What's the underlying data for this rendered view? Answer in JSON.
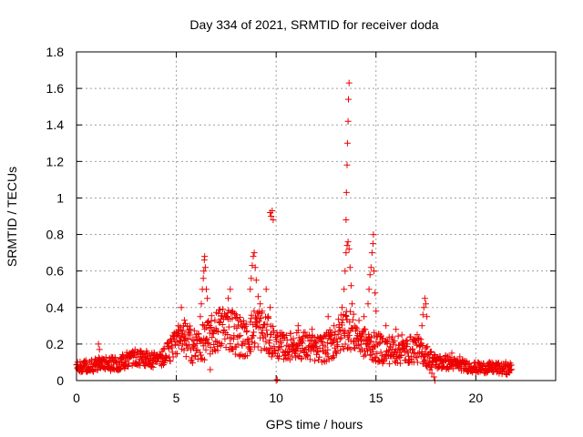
{
  "chart_data": {
    "type": "scatter",
    "title": "Day 334 of 2021, SRMTID for receiver doda",
    "xlabel": "GPS time / hours",
    "ylabel": "SRMTID / TECUs",
    "xlim": [
      0,
      24
    ],
    "ylim": [
      0,
      1.8
    ],
    "xticks": [
      0,
      5,
      10,
      15,
      20
    ],
    "xtick_labels": [
      "0",
      "5",
      "10",
      "15",
      "20"
    ],
    "yticks": [
      0,
      0.2,
      0.4,
      0.6,
      0.8,
      1,
      1.2,
      1.4,
      1.6,
      1.8
    ],
    "ytick_labels": [
      "0",
      "0.2",
      "0.4",
      "0.6",
      "0.8",
      "1",
      "1.2",
      "1.4",
      "1.6",
      "1.8"
    ],
    "grid": true,
    "marker": "plus",
    "marker_color": "#ee0000",
    "series": [
      {
        "name": "SRMTID",
        "envelope": {
          "description": "baseline of the dense point cloud, hours -> TECUs",
          "x": [
            0,
            1,
            2,
            3,
            4,
            4.5,
            5,
            5.5,
            6,
            6.5,
            7,
            7.5,
            8,
            8.5,
            9,
            9.5,
            10,
            10.5,
            11,
            11.5,
            12,
            12.5,
            13,
            13.5,
            14,
            14.5,
            15,
            15.5,
            16,
            16.5,
            17,
            17.5,
            18,
            18.5,
            19,
            19.5,
            20,
            20.5,
            21,
            21.5,
            21.8
          ],
          "y": [
            0.07,
            0.09,
            0.09,
            0.13,
            0.11,
            0.15,
            0.2,
            0.22,
            0.18,
            0.22,
            0.27,
            0.3,
            0.26,
            0.22,
            0.3,
            0.25,
            0.2,
            0.18,
            0.2,
            0.19,
            0.17,
            0.18,
            0.22,
            0.3,
            0.25,
            0.2,
            0.18,
            0.17,
            0.17,
            0.16,
            0.18,
            0.14,
            0.1,
            0.1,
            0.09,
            0.08,
            0.07,
            0.07,
            0.07,
            0.06,
            0.07
          ],
          "spread": [
            0.03,
            0.04,
            0.04,
            0.05,
            0.04,
            0.06,
            0.08,
            0.1,
            0.1,
            0.1,
            0.12,
            0.13,
            0.12,
            0.1,
            0.12,
            0.11,
            0.08,
            0.07,
            0.08,
            0.08,
            0.07,
            0.08,
            0.1,
            0.12,
            0.1,
            0.08,
            0.08,
            0.08,
            0.08,
            0.07,
            0.08,
            0.06,
            0.04,
            0.04,
            0.03,
            0.03,
            0.03,
            0.03,
            0.03,
            0.03,
            0.03
          ]
        },
        "points": [
          [
            1.1,
            0.2
          ],
          [
            1.15,
            0.17
          ],
          [
            5.1,
            0.3
          ],
          [
            5.25,
            0.4
          ],
          [
            5.4,
            0.33
          ],
          [
            6.2,
            0.35
          ],
          [
            6.25,
            0.42
          ],
          [
            6.3,
            0.5
          ],
          [
            6.35,
            0.56
          ],
          [
            6.38,
            0.6
          ],
          [
            6.4,
            0.66
          ],
          [
            6.42,
            0.68
          ],
          [
            6.45,
            0.62
          ],
          [
            6.5,
            0.5
          ],
          [
            6.55,
            0.45
          ],
          [
            6.7,
            0.06
          ],
          [
            7.6,
            0.45
          ],
          [
            7.7,
            0.5
          ],
          [
            7.8,
            0.38
          ],
          [
            8.7,
            0.5
          ],
          [
            8.75,
            0.56
          ],
          [
            8.8,
            0.63
          ],
          [
            8.85,
            0.68
          ],
          [
            8.9,
            0.7
          ],
          [
            8.95,
            0.62
          ],
          [
            9.0,
            0.55
          ],
          [
            9.1,
            0.46
          ],
          [
            9.2,
            0.42
          ],
          [
            9.3,
            0.38
          ],
          [
            9.5,
            0.5
          ],
          [
            9.6,
            0.35
          ],
          [
            9.7,
            0.4
          ],
          [
            9.7,
            0.92
          ],
          [
            9.75,
            0.9
          ],
          [
            9.8,
            0.93
          ],
          [
            9.85,
            0.88
          ],
          [
            10.0,
            0.0
          ],
          [
            10.05,
            0.005
          ],
          [
            11.1,
            0.3
          ],
          [
            11.8,
            0.28
          ],
          [
            12.6,
            0.35
          ],
          [
            12.9,
            0.3
          ],
          [
            13.3,
            0.4
          ],
          [
            13.4,
            0.5
          ],
          [
            13.45,
            0.6
          ],
          [
            13.5,
            0.7
          ],
          [
            13.55,
            0.74
          ],
          [
            13.6,
            0.76
          ],
          [
            13.65,
            0.72
          ],
          [
            13.7,
            0.62
          ],
          [
            13.75,
            0.52
          ],
          [
            13.8,
            0.42
          ],
          [
            13.5,
            0.88
          ],
          [
            13.52,
            1.03
          ],
          [
            13.55,
            1.18
          ],
          [
            13.57,
            1.3
          ],
          [
            13.6,
            1.42
          ],
          [
            13.62,
            1.54
          ],
          [
            13.65,
            1.63
          ],
          [
            14.3,
            0.25
          ],
          [
            14.4,
            0.35
          ],
          [
            14.6,
            0.42
          ],
          [
            14.65,
            0.5
          ],
          [
            14.7,
            0.58
          ],
          [
            14.75,
            0.62
          ],
          [
            14.8,
            0.7
          ],
          [
            14.85,
            0.75
          ],
          [
            14.87,
            0.8
          ],
          [
            14.9,
            0.6
          ],
          [
            14.95,
            0.48
          ],
          [
            15.0,
            0.38
          ],
          [
            15.5,
            0.3
          ],
          [
            16.0,
            0.28
          ],
          [
            16.3,
            0.25
          ],
          [
            17.3,
            0.3
          ],
          [
            17.35,
            0.36
          ],
          [
            17.4,
            0.4
          ],
          [
            17.45,
            0.45
          ],
          [
            17.5,
            0.42
          ],
          [
            17.55,
            0.35
          ],
          [
            17.7,
            0.06
          ],
          [
            17.8,
            0.04
          ],
          [
            17.9,
            0.02
          ],
          [
            17.95,
            0.0
          ],
          [
            18.8,
            0.15
          ],
          [
            19.2,
            0.13
          ],
          [
            21.5,
            0.1
          ]
        ]
      }
    ]
  }
}
